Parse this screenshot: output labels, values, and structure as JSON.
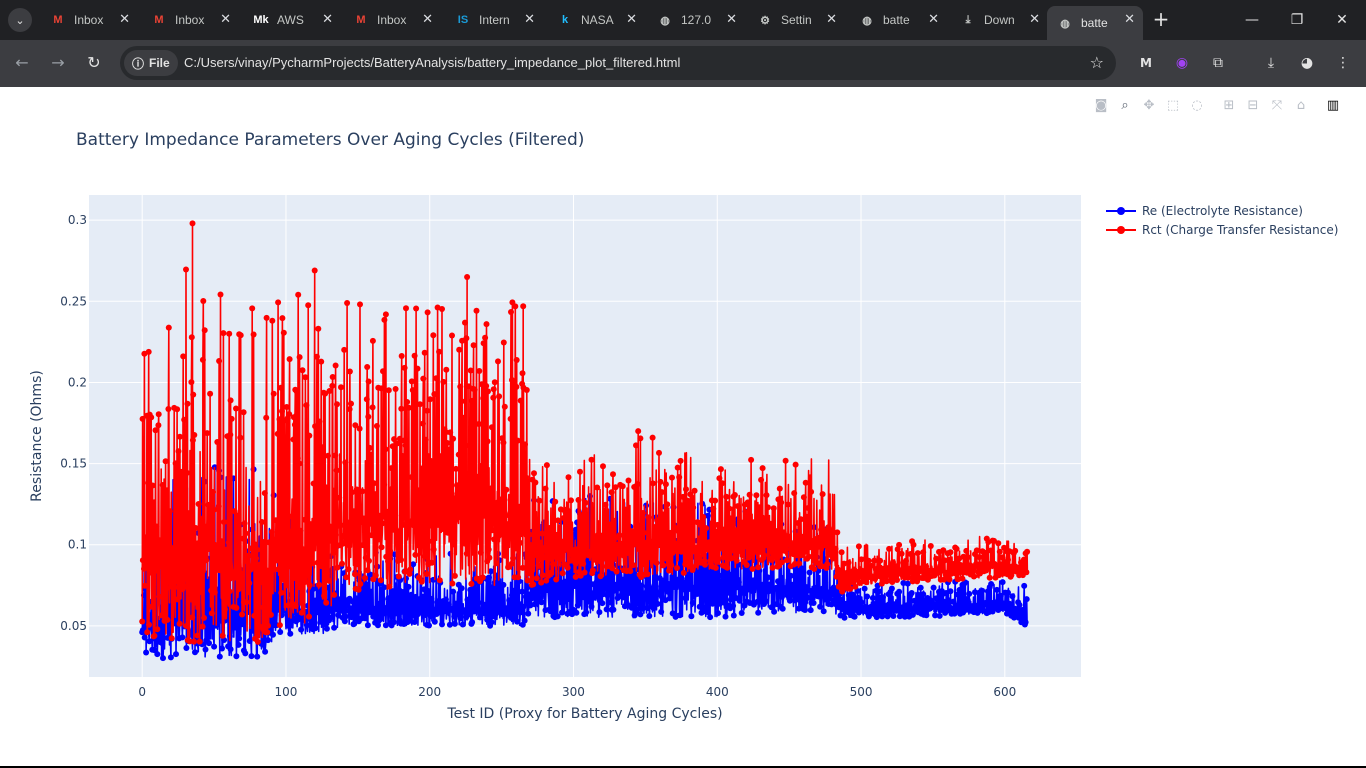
{
  "browser": {
    "tabs": [
      {
        "label": "Inbox",
        "icon": "gmail-icon",
        "glyph": "M",
        "color": "#ea4335"
      },
      {
        "label": "Inbox",
        "icon": "gmail-icon",
        "glyph": "M",
        "color": "#ea4335"
      },
      {
        "label": "AWS",
        "icon": "medium-icon",
        "glyph": "Mk",
        "color": "#ffffff"
      },
      {
        "label": "Inbox",
        "icon": "gmail-icon",
        "glyph": "M",
        "color": "#ea4335"
      },
      {
        "label": "Intern",
        "icon": "is-icon",
        "glyph": "IS",
        "color": "#1a9bd7"
      },
      {
        "label": "NASA",
        "icon": "kaggle-icon",
        "glyph": "k",
        "color": "#20beff"
      },
      {
        "label": "127.0",
        "icon": "globe-icon",
        "glyph": "◍",
        "color": "#c4c7c5"
      },
      {
        "label": "Settin",
        "icon": "gear-icon",
        "glyph": "⚙",
        "color": "#c4c7c5"
      },
      {
        "label": "batte",
        "icon": "globe-icon",
        "glyph": "◍",
        "color": "#c4c7c5"
      },
      {
        "label": "Down",
        "icon": "download-icon",
        "glyph": "⤓",
        "color": "#c4c7c5"
      },
      {
        "label": "batte",
        "icon": "globe-icon",
        "glyph": "◍",
        "color": "#c4c7c5",
        "active": true
      }
    ],
    "chip_label": "File",
    "url": "C:/Users/vinay/PycharmProjects/BatteryAnalysis/battery_impedance_plot_filtered.html"
  },
  "colors": {
    "re": "#0000ff",
    "rct": "#ff0000",
    "plot_bg": "#e5ecf6",
    "text": "#2a3f5f"
  },
  "chart_data": {
    "type": "line",
    "title": "Battery Impedance Parameters Over Aging Cycles (Filtered)",
    "xlabel": "Test ID (Proxy for Battery Aging Cycles)",
    "ylabel": "Resistance (Ohms)",
    "xlim": [
      -37,
      653
    ],
    "ylim": [
      0.0185,
      0.3155
    ],
    "x_ticks": [
      0,
      100,
      200,
      300,
      400,
      500,
      600
    ],
    "y_ticks": [
      0.05,
      0.1,
      0.15,
      0.2,
      0.25,
      0.3
    ],
    "y_tick_labels": [
      "0.05",
      "0.1",
      "0.15",
      "0.2",
      "0.25",
      "0.3"
    ],
    "grid": true,
    "legend_position": "top-right",
    "x_range": [
      0,
      615
    ],
    "series": [
      {
        "name": "Re (Electrolyte Resistance)",
        "color": "#0000ff",
        "envelope_x": [
          0,
          20,
          40,
          60,
          80,
          100,
          130,
          140,
          200,
          265,
          270,
          300,
          350,
          400,
          430,
          480,
          485,
          500,
          550,
          600,
          615
        ],
        "envelope_low": [
          0.03,
          0.03,
          0.03,
          0.03,
          0.03,
          0.045,
          0.045,
          0.05,
          0.05,
          0.05,
          0.055,
          0.055,
          0.055,
          0.055,
          0.058,
          0.058,
          0.055,
          0.055,
          0.056,
          0.058,
          0.05
        ],
        "envelope_high": [
          0.1,
          0.15,
          0.15,
          0.15,
          0.15,
          0.12,
          0.1,
          0.1,
          0.095,
          0.095,
          0.13,
          0.13,
          0.13,
          0.125,
          0.125,
          0.11,
          0.08,
          0.075,
          0.078,
          0.078,
          0.075
        ]
      },
      {
        "name": "Rct (Charge Transfer Resistance)",
        "color": "#ff0000",
        "envelope_x": [
          0,
          20,
          40,
          60,
          80,
          100,
          130,
          140,
          200,
          265,
          270,
          300,
          350,
          400,
          430,
          480,
          485,
          500,
          550,
          600,
          615
        ],
        "envelope_low": [
          0.045,
          0.04,
          0.04,
          0.04,
          0.04,
          0.045,
          0.06,
          0.07,
          0.075,
          0.075,
          0.075,
          0.08,
          0.08,
          0.085,
          0.085,
          0.085,
          0.07,
          0.075,
          0.078,
          0.08,
          0.08
        ],
        "envelope_high": [
          0.245,
          0.245,
          0.298,
          0.25,
          0.25,
          0.255,
          0.269,
          0.255,
          0.25,
          0.265,
          0.15,
          0.15,
          0.17,
          0.15,
          0.153,
          0.153,
          0.1,
          0.1,
          0.105,
          0.106,
          0.1
        ],
        "peaks": [
          {
            "x": 35,
            "y": 0.298
          },
          {
            "x": 120,
            "y": 0.269
          },
          {
            "x": 226,
            "y": 0.265
          },
          {
            "x": 265,
            "y": 0.247
          },
          {
            "x": 345,
            "y": 0.17
          },
          {
            "x": 355,
            "y": 0.166
          }
        ]
      }
    ]
  }
}
